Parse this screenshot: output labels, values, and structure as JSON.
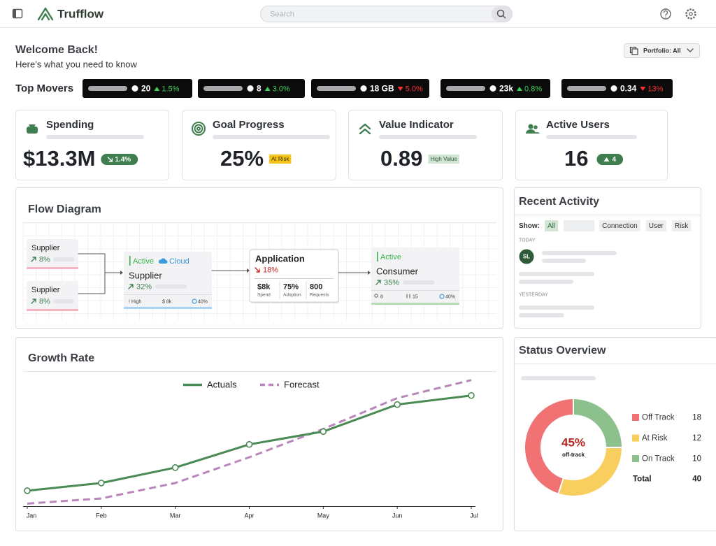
{
  "header": {
    "brand": "Trufflow",
    "search_placeholder": "Search"
  },
  "welcome": {
    "title": "Welcome Back!",
    "subtitle": "Here’s what you need to know",
    "portfolio": "Portfolio: All"
  },
  "top_movers": {
    "label": "Top Movers",
    "items": [
      {
        "value": "20",
        "change": "1.5%",
        "direction": "up"
      },
      {
        "value": "8",
        "change": "3.0%",
        "direction": "up"
      },
      {
        "value": "18 GB",
        "change": "5.0%",
        "direction": "down"
      },
      {
        "value": "23k",
        "change": "0.8%",
        "direction": "up"
      },
      {
        "value": "0.34",
        "change": "13%",
        "direction": "down"
      }
    ]
  },
  "kpis": [
    {
      "title": "Spending",
      "value": "$13.3M",
      "badge": "1.4%"
    },
    {
      "title": "Goal Progress",
      "value": "25%",
      "badge": "At Risk"
    },
    {
      "title": "Value Indicator",
      "value": "0.89",
      "badge": "High Value"
    },
    {
      "title": "Active Users",
      "value": "16",
      "badge": "4"
    }
  ],
  "flow": {
    "title": "Flow Diagram",
    "sources": [
      {
        "name": "Supplier",
        "change": "8%"
      },
      {
        "name": "Supplier",
        "change": "8%"
      }
    ],
    "supplier": {
      "tags": [
        "Active",
        "Cloud"
      ],
      "name": "Supplier",
      "change": "32%",
      "stats": [
        "! High",
        "$ 8k",
        "40%"
      ]
    },
    "application": {
      "name": "Application",
      "change": "18%",
      "metrics": [
        {
          "value": "$8k",
          "label": "Spend"
        },
        {
          "value": "75%",
          "label": "Adoption"
        },
        {
          "value": "800",
          "label": "Requests"
        }
      ]
    },
    "consumer": {
      "tag": "Active",
      "name": "Consumer",
      "change": "35%",
      "stats": [
        "8",
        "15",
        "40%"
      ]
    }
  },
  "recent_activity": {
    "title": "Recent Activity",
    "show_label": "Show:",
    "filters": [
      "All",
      "Connection",
      "User",
      "Risk"
    ],
    "today": "TODAY",
    "avatar": "SL",
    "yesterday": "YESTERDAY"
  },
  "chart_data": [
    {
      "type": "line",
      "title": "Growth Rate",
      "categories": [
        "Jan",
        "Feb",
        "Mar",
        "Apr",
        "May",
        "Jun",
        "Jul"
      ],
      "series": [
        {
          "name": "Actuals",
          "color": "#4a8a55",
          "style": "solid",
          "markers": true,
          "values": [
            12,
            18,
            30,
            48,
            58,
            79,
            86
          ]
        },
        {
          "name": "Forecast",
          "color": "#b985bb",
          "style": "dashed",
          "markers": false,
          "values": [
            2,
            6,
            18,
            38,
            60,
            84,
            98
          ]
        }
      ],
      "ylim": [
        0,
        100
      ],
      "grid": false,
      "legend": "top"
    },
    {
      "type": "pie",
      "donut": true,
      "title": "Status Overview",
      "categories": [
        "Off Track",
        "At Risk",
        "On Track"
      ],
      "values": [
        18,
        12,
        10
      ],
      "colors": [
        "#f07272",
        "#f8cf5e",
        "#8cc08d"
      ],
      "center_label": "45%",
      "center_sublabel": "off-track",
      "total_label": "Total",
      "total": 40,
      "legend": "right"
    }
  ]
}
